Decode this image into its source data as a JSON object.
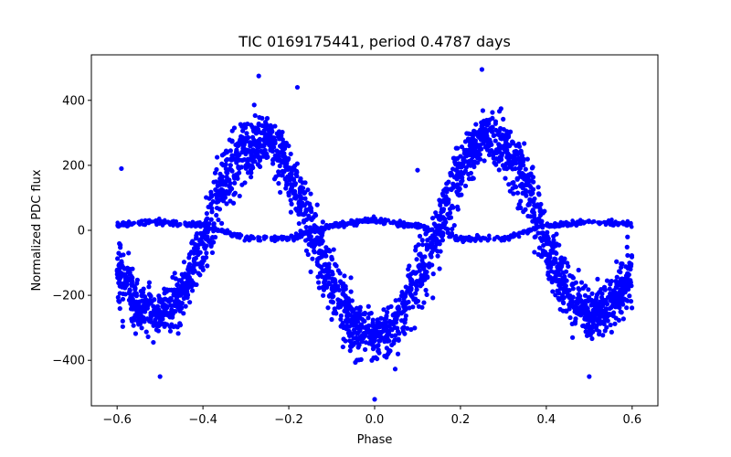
{
  "chart_data": {
    "type": "scatter",
    "title": "TIC 0169175441, period 0.4787 days",
    "xlabel": "Phase",
    "ylabel": "Normalized PDC flux",
    "xlim": [
      -0.66,
      0.66
    ],
    "ylim": [
      -540,
      540
    ],
    "xticks": [
      -0.6,
      -0.4,
      -0.2,
      0.0,
      0.2,
      0.4,
      0.6
    ],
    "xtick_labels": [
      "−0.6",
      "−0.4",
      "−0.2",
      "0.0",
      "0.2",
      "0.4",
      "0.6"
    ],
    "yticks": [
      -400,
      -200,
      0,
      200,
      400
    ],
    "ytick_labels": [
      "−400",
      "−200",
      "0",
      "200",
      "400"
    ],
    "grid": false,
    "marker_color": "#0000ff",
    "series": [
      {
        "description": "folded light curve: flux(phase) with phase range -0.6 to 0.6",
        "points_main_envelope_center": [
          [
            -0.6,
            -120
          ],
          [
            -0.55,
            -230
          ],
          [
            -0.5,
            -260
          ],
          [
            -0.45,
            -190
          ],
          [
            -0.4,
            -40
          ],
          [
            -0.35,
            160
          ],
          [
            -0.3,
            260
          ],
          [
            -0.25,
            290
          ],
          [
            -0.2,
            180
          ],
          [
            -0.15,
            10
          ],
          [
            -0.1,
            -160
          ],
          [
            -0.05,
            -290
          ],
          [
            0.0,
            -330
          ],
          [
            0.05,
            -290
          ],
          [
            0.1,
            -160
          ],
          [
            0.15,
            10
          ],
          [
            0.2,
            180
          ],
          [
            0.25,
            290
          ],
          [
            0.3,
            260
          ],
          [
            0.35,
            160
          ],
          [
            0.4,
            -40
          ],
          [
            0.45,
            -190
          ],
          [
            0.5,
            -260
          ],
          [
            0.55,
            -230
          ],
          [
            0.6,
            -120
          ]
        ],
        "secondary_track_near_zero": [
          [
            -0.6,
            20
          ],
          [
            -0.5,
            25
          ],
          [
            -0.4,
            15
          ],
          [
            -0.3,
            -25
          ],
          [
            -0.2,
            -25
          ],
          [
            -0.1,
            15
          ],
          [
            0.0,
            30
          ],
          [
            0.1,
            15
          ],
          [
            0.2,
            -25
          ],
          [
            0.3,
            -25
          ],
          [
            0.4,
            15
          ],
          [
            0.5,
            25
          ],
          [
            0.6,
            20
          ]
        ],
        "upper_envelope_extremes": [
          [
            -0.27,
            475
          ],
          [
            0.25,
            495
          ]
        ],
        "lower_envelope_extremes": [
          [
            -0.5,
            -450
          ],
          [
            0.0,
            -520
          ],
          [
            0.5,
            -450
          ]
        ],
        "outliers": [
          [
            -0.59,
            190
          ],
          [
            0.1,
            185
          ],
          [
            -0.18,
            440
          ]
        ]
      }
    ]
  }
}
